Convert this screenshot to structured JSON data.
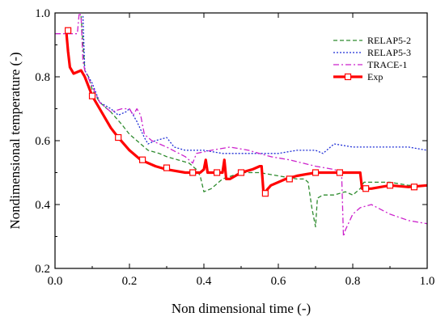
{
  "chart_data": {
    "type": "line",
    "xlabel": "Non dimensional time (-)",
    "ylabel": "Nondimensional temperature (-)",
    "xlim": [
      0.0,
      1.0
    ],
    "ylim": [
      0.2,
      1.0
    ],
    "xticks": [
      "0.0",
      "0.2",
      "0.4",
      "0.6",
      "0.8",
      "1.0"
    ],
    "yticks": [
      "0.2",
      "0.4",
      "0.6",
      "0.8",
      "1.0"
    ],
    "legend_position": "top-right",
    "grid": false,
    "series": [
      {
        "name": "RELAP5-2",
        "color": "#2e8b2e",
        "style": "dashed",
        "points": [
          [
            0.07,
            0.99
          ],
          [
            0.08,
            0.82
          ],
          [
            0.09,
            0.8
          ],
          [
            0.1,
            0.76
          ],
          [
            0.12,
            0.72
          ],
          [
            0.15,
            0.69
          ],
          [
            0.18,
            0.65
          ],
          [
            0.2,
            0.62
          ],
          [
            0.22,
            0.6
          ],
          [
            0.25,
            0.57
          ],
          [
            0.28,
            0.56
          ],
          [
            0.3,
            0.55
          ],
          [
            0.33,
            0.54
          ],
          [
            0.36,
            0.53
          ],
          [
            0.38,
            0.51
          ],
          [
            0.39,
            0.49
          ],
          [
            0.4,
            0.44
          ],
          [
            0.42,
            0.45
          ],
          [
            0.45,
            0.48
          ],
          [
            0.5,
            0.5
          ],
          [
            0.55,
            0.5
          ],
          [
            0.6,
            0.49
          ],
          [
            0.65,
            0.48
          ],
          [
            0.67,
            0.48
          ],
          [
            0.68,
            0.47
          ],
          [
            0.69,
            0.39
          ],
          [
            0.7,
            0.33
          ],
          [
            0.705,
            0.42
          ],
          [
            0.72,
            0.43
          ],
          [
            0.75,
            0.43
          ],
          [
            0.78,
            0.44
          ],
          [
            0.8,
            0.43
          ],
          [
            0.82,
            0.45
          ],
          [
            0.83,
            0.47
          ],
          [
            0.84,
            0.47
          ],
          [
            0.9,
            0.47
          ],
          [
            0.95,
            0.46
          ],
          [
            1.0,
            0.46
          ]
        ]
      },
      {
        "name": "RELAP5-3",
        "color": "#1f2fd6",
        "style": "dotted",
        "points": [
          [
            0.075,
            0.99
          ],
          [
            0.08,
            0.82
          ],
          [
            0.1,
            0.78
          ],
          [
            0.12,
            0.72
          ],
          [
            0.15,
            0.7
          ],
          [
            0.17,
            0.68
          ],
          [
            0.19,
            0.69
          ],
          [
            0.2,
            0.7
          ],
          [
            0.22,
            0.66
          ],
          [
            0.24,
            0.61
          ],
          [
            0.25,
            0.59
          ],
          [
            0.27,
            0.6
          ],
          [
            0.3,
            0.61
          ],
          [
            0.32,
            0.58
          ],
          [
            0.35,
            0.57
          ],
          [
            0.4,
            0.57
          ],
          [
            0.45,
            0.56
          ],
          [
            0.5,
            0.56
          ],
          [
            0.55,
            0.56
          ],
          [
            0.6,
            0.56
          ],
          [
            0.65,
            0.57
          ],
          [
            0.7,
            0.57
          ],
          [
            0.72,
            0.56
          ],
          [
            0.74,
            0.58
          ],
          [
            0.75,
            0.59
          ],
          [
            0.8,
            0.58
          ],
          [
            0.85,
            0.58
          ],
          [
            0.9,
            0.58
          ],
          [
            0.95,
            0.58
          ],
          [
            1.0,
            0.57
          ]
        ]
      },
      {
        "name": "TRACE-1",
        "color": "#cc22cc",
        "style": "dashdot",
        "points": [
          [
            0.0,
            0.935
          ],
          [
            0.06,
            0.935
          ],
          [
            0.065,
            1.0
          ],
          [
            0.07,
            0.99
          ],
          [
            0.075,
            0.85
          ],
          [
            0.08,
            0.82
          ],
          [
            0.1,
            0.77
          ],
          [
            0.12,
            0.72
          ],
          [
            0.15,
            0.69
          ],
          [
            0.18,
            0.7
          ],
          [
            0.2,
            0.7
          ],
          [
            0.21,
            0.68
          ],
          [
            0.22,
            0.7
          ],
          [
            0.23,
            0.68
          ],
          [
            0.24,
            0.62
          ],
          [
            0.26,
            0.6
          ],
          [
            0.3,
            0.58
          ],
          [
            0.35,
            0.55
          ],
          [
            0.37,
            0.53
          ],
          [
            0.38,
            0.56
          ],
          [
            0.42,
            0.57
          ],
          [
            0.47,
            0.58
          ],
          [
            0.52,
            0.57
          ],
          [
            0.58,
            0.55
          ],
          [
            0.63,
            0.54
          ],
          [
            0.7,
            0.52
          ],
          [
            0.75,
            0.51
          ],
          [
            0.77,
            0.5
          ],
          [
            0.775,
            0.3
          ],
          [
            0.78,
            0.32
          ],
          [
            0.8,
            0.37
          ],
          [
            0.82,
            0.39
          ],
          [
            0.85,
            0.4
          ],
          [
            0.9,
            0.37
          ],
          [
            0.95,
            0.35
          ],
          [
            1.0,
            0.34
          ]
        ]
      },
      {
        "name": "Exp",
        "color": "#ff0000",
        "style": "solid-marker",
        "points": [
          [
            0.03,
            0.945
          ],
          [
            0.035,
            0.88
          ],
          [
            0.04,
            0.83
          ],
          [
            0.05,
            0.81
          ],
          [
            0.07,
            0.82
          ],
          [
            0.08,
            0.8
          ],
          [
            0.1,
            0.74
          ],
          [
            0.12,
            0.7
          ],
          [
            0.15,
            0.64
          ],
          [
            0.17,
            0.61
          ],
          [
            0.2,
            0.57
          ],
          [
            0.23,
            0.54
          ],
          [
            0.27,
            0.52
          ],
          [
            0.3,
            0.51
          ],
          [
            0.35,
            0.5
          ],
          [
            0.38,
            0.5
          ],
          [
            0.39,
            0.5
          ],
          [
            0.4,
            0.51
          ],
          [
            0.405,
            0.54
          ],
          [
            0.41,
            0.5
          ],
          [
            0.43,
            0.5
          ],
          [
            0.45,
            0.5
          ],
          [
            0.455,
            0.54
          ],
          [
            0.46,
            0.48
          ],
          [
            0.47,
            0.48
          ],
          [
            0.5,
            0.5
          ],
          [
            0.53,
            0.51
          ],
          [
            0.55,
            0.52
          ],
          [
            0.555,
            0.52
          ],
          [
            0.56,
            0.44
          ],
          [
            0.565,
            0.44
          ],
          [
            0.58,
            0.46
          ],
          [
            0.62,
            0.48
          ],
          [
            0.65,
            0.49
          ],
          [
            0.7,
            0.5
          ],
          [
            0.75,
            0.5
          ],
          [
            0.78,
            0.5
          ],
          [
            0.8,
            0.5
          ],
          [
            0.82,
            0.5
          ],
          [
            0.825,
            0.45
          ],
          [
            0.83,
            0.45
          ],
          [
            0.85,
            0.45
          ],
          [
            0.9,
            0.46
          ],
          [
            0.95,
            0.455
          ],
          [
            1.0,
            0.46
          ]
        ],
        "markers": [
          [
            0.035,
            0.945
          ],
          [
            0.1,
            0.74
          ],
          [
            0.17,
            0.61
          ],
          [
            0.235,
            0.54
          ],
          [
            0.3,
            0.515
          ],
          [
            0.37,
            0.5
          ],
          [
            0.435,
            0.5
          ],
          [
            0.5,
            0.5
          ],
          [
            0.565,
            0.435
          ],
          [
            0.63,
            0.48
          ],
          [
            0.7,
            0.5
          ],
          [
            0.765,
            0.5
          ],
          [
            0.835,
            0.45
          ],
          [
            0.9,
            0.46
          ],
          [
            0.965,
            0.455
          ]
        ]
      }
    ]
  }
}
